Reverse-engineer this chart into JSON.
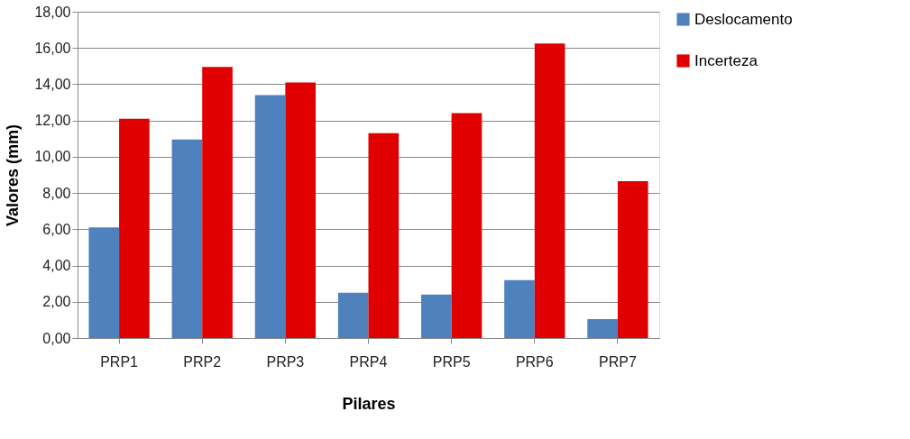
{
  "chart_data": {
    "type": "bar",
    "xlabel": "Pilares",
    "ylabel": "Valores  (mm)",
    "categories": [
      "PRP1",
      "PRP2",
      "PRP3",
      "PRP4",
      "PRP5",
      "PRP6",
      "PRP7"
    ],
    "series": [
      {
        "name": "Deslocamento",
        "color": "#4f81bd",
        "values": [
          6.1,
          10.95,
          13.4,
          2.5,
          2.4,
          3.2,
          1.05
        ]
      },
      {
        "name": "Incerteza",
        "color": "#e00000",
        "values": [
          12.1,
          14.95,
          14.1,
          11.3,
          12.4,
          16.25,
          8.65
        ]
      }
    ],
    "ylim": [
      0,
      18
    ],
    "yticks": [
      {
        "value": 0,
        "label": "0,00"
      },
      {
        "value": 2,
        "label": "2,00"
      },
      {
        "value": 4,
        "label": "4,00"
      },
      {
        "value": 6,
        "label": "6,00"
      },
      {
        "value": 8,
        "label": "8,00"
      },
      {
        "value": 10,
        "label": "10,00"
      },
      {
        "value": 12,
        "label": "12,00"
      },
      {
        "value": 14,
        "label": "14,00"
      },
      {
        "value": 16,
        "label": "16,00"
      },
      {
        "value": 18,
        "label": "18,00"
      }
    ],
    "grid": "y",
    "legend": "right"
  }
}
